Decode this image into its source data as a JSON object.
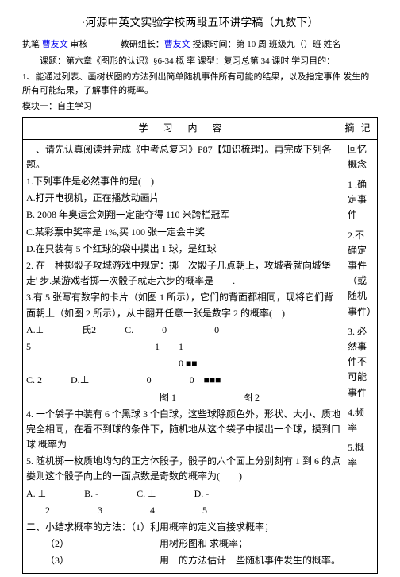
{
  "header": {
    "title": "·河源中英文实验学校两段五环讲学稿（九数下）",
    "line1_prefix": "执笔 ",
    "author1": "曹友文",
    "line1_mid": " 审核_______ 教研组长：",
    "author2": "曹友文",
    "line1_tail": " 授课时间：第 10 周 班级九（）班 姓名",
    "line2": "课题：第六章《图形的认识》§6-34 概 率 课型：复习总第 34 课时  学习目的：",
    "line3": "1、能通过列表、画树状图的方法列出简单随机事件所有可能的结果，以及指定事件 发生的所有可能结果，了解事件的概率。",
    "module": "模块一：自主学习"
  },
  "table": {
    "head_left": "学 习 内 容",
    "head_right": "摘记",
    "left": {
      "p0": "一、请先认真阅读并完成《中考总复习》P87【知识梳理】。再完成下列各题。",
      "p1": "1.下列事件是必然事件的是(　)",
      "p1a": "A.打开电视机，正在播放动画片",
      "p1b": "B. 2008 年奥运会刘翔一定能夺得 110 米跨栏冠军",
      "p1c": "C.某彩票中奖率是 1%,买 100 张一定会中奖",
      "p1d": "D.在只装有 5 个红球的袋中摸出 1 球，是红球",
      "p2": "2. 在一种掷骰子攻城游戏中规定：掷一次骰子几点朝上，攻城者就向城堡走' 步.某游戏者掷一次骰子就走六步的概率是____.",
      "p3": "3.有 5 张写有数字的卡片（如图 1 所示），它们的背面都相同，现将它们背面朝上（如图 2 所示），从中翻开任意一张是数字 2 的概率(　)",
      "opt_row1": "A.⊥　　　　氏2　　　C.　　　0　　　　　0",
      "opt_mid1": "5　　　　　　　　　　　　　1　　1",
      "opt_mid2": "　　　　　　　　　　　　　　　　0 ■■",
      "opt_row2": "C. 2　　　D.⊥　　　　　　0　　　　0　■■■",
      "opt_foot": "　　　　　　　　　　　　　　图 1　　　　　　　图 2",
      "p4": "4.  一个袋子中装有 6 个黑球 3 个白球，这些球除颜色外，形状、大小、质地 完全相同，在看不到球的条件下，随机地从这个袋子中摸出一个球，摸到口球 概率为",
      "p5": "5. 随机掷一枚质地均匀的正方体骰子，骰子的六个面上分别刻有 1 到 6 的点娄则这个骰子向上的一面点数是奇数的概率为(　　)",
      "p5opts": "A. ⊥　　　　B. -　　　　C. ⊥　　　　D. -",
      "p5nums": "　　2　　　　　3　　　　　4　　　　　5",
      "p6": "二、小结求概率的方法：（1）利用概率的定义盲接求概率；",
      "p6a": "（2）　　　　　　　　　　用树形图和 求概率；",
      "p6b": "（3）　　　　　　　　　　用　的方法估计一些随机事件发生的概率。"
    },
    "right": {
      "r1": "回忆概念",
      "r2": "1 .确定事件",
      "r3": "2.不确定事件（或随机事件）",
      "r4": "3. 必然事件不可能事件",
      "r5": "4.频率",
      "r6": "5.概率"
    }
  }
}
